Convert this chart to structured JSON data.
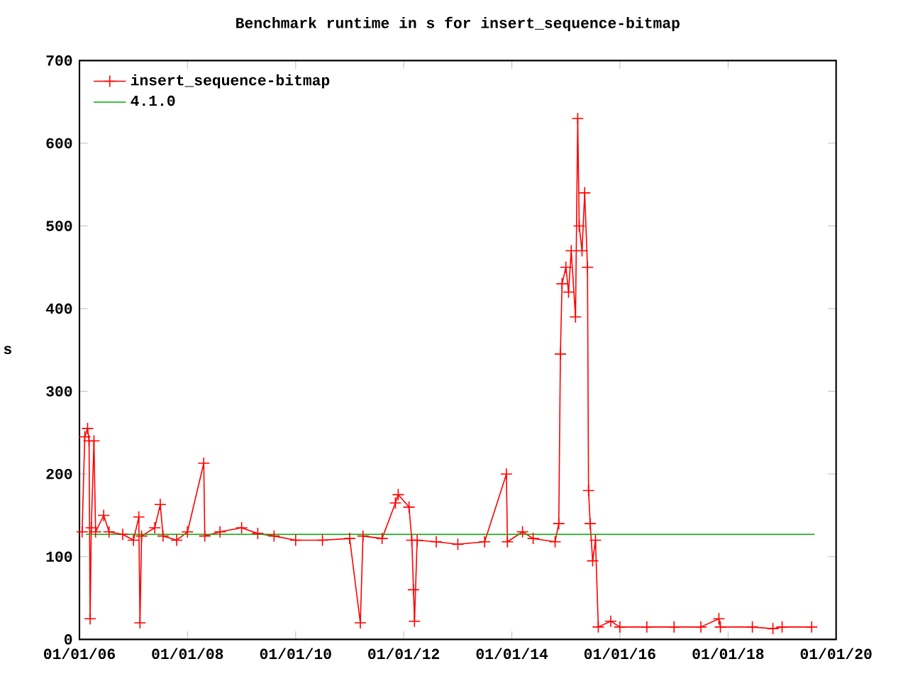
{
  "chart_data": {
    "type": "line",
    "title": "Benchmark runtime in s for insert_sequence-bitmap",
    "ylabel": "s",
    "series": [
      {
        "name": "insert_sequence-bitmap",
        "color": "#ff0000",
        "marker": "cross",
        "x": [
          "2006-01-19",
          "2006-02-06",
          "2006-02-25",
          "2006-03-07",
          "2006-03-14",
          "2006-03-22",
          "2006-04-09",
          "2006-04-20",
          "2006-06-14",
          "2006-07-20",
          "2006-10-20",
          "2007-01-01",
          "2007-02-06",
          "2007-02-14",
          "2007-02-25",
          "2007-05-25",
          "2007-07-01",
          "2007-07-20",
          "2007-10-20",
          "2008-01-01",
          "2008-04-20",
          "2008-04-27",
          "2008-08-08",
          "2009-01-01",
          "2009-04-20",
          "2009-08-08",
          "2010-01-01",
          "2010-07-01",
          "2011-01-01",
          "2011-03-14",
          "2011-04-01",
          "2011-08-08",
          "2011-11-06",
          "2011-11-25",
          "2012-02-06",
          "2012-02-25",
          "2012-03-07",
          "2012-03-14",
          "2012-04-01",
          "2012-08-08",
          "2013-01-01",
          "2013-07-01",
          "2013-11-25",
          "2013-12-02",
          "2014-03-14",
          "2014-05-25",
          "2014-10-20",
          "2014-11-14",
          "2014-11-25",
          "2014-12-06",
          "2015-01-01",
          "2015-01-19",
          "2015-02-06",
          "2015-03-07",
          "2015-03-22",
          "2015-04-01",
          "2015-04-20",
          "2015-05-08",
          "2015-05-27",
          "2015-06-03",
          "2015-06-14",
          "2015-07-01",
          "2015-07-20",
          "2015-08-08",
          "2015-10-31",
          "2016-01-01",
          "2016-07-01",
          "2017-01-01",
          "2017-07-01",
          "2017-10-31",
          "2017-11-10",
          "2018-06-14",
          "2018-10-31",
          "2019-01-01",
          "2019-07-20"
        ],
        "values": [
          130,
          245,
          255,
          240,
          25,
          135,
          240,
          130,
          150,
          130,
          127,
          120,
          148,
          20,
          125,
          135,
          163,
          125,
          120,
          130,
          213,
          125,
          130,
          135,
          128,
          125,
          120,
          120,
          122,
          20,
          125,
          122,
          165,
          175,
          160,
          120,
          60,
          22,
          120,
          118,
          115,
          118,
          200,
          118,
          130,
          122,
          118,
          140,
          345,
          430,
          450,
          420,
          470,
          390,
          630,
          500,
          470,
          540,
          450,
          180,
          140,
          95,
          120,
          15,
          22,
          15,
          15,
          15,
          15,
          25,
          15,
          15,
          13,
          15,
          15
        ]
      },
      {
        "name": "4.1.0",
        "color": "#00b000",
        "marker": "none",
        "x": [
          "2006-02-15",
          "2019-08-08"
        ],
        "values": [
          127,
          127
        ]
      }
    ],
    "xlim": [
      "2006-01-01",
      "2020-01-01"
    ],
    "xticks": [
      {
        "value": "2006-01-01",
        "label": "01/01/06"
      },
      {
        "value": "2008-01-01",
        "label": "01/01/08"
      },
      {
        "value": "2010-01-01",
        "label": "01/01/10"
      },
      {
        "value": "2012-01-01",
        "label": "01/01/12"
      },
      {
        "value": "2014-01-01",
        "label": "01/01/14"
      },
      {
        "value": "2016-01-01",
        "label": "01/01/16"
      },
      {
        "value": "2018-01-01",
        "label": "01/01/18"
      },
      {
        "value": "2020-01-01",
        "label": "01/01/20"
      }
    ],
    "ylim": [
      0,
      700
    ],
    "yticks": [
      0,
      100,
      200,
      300,
      400,
      500,
      600,
      700
    ],
    "legend": "top left",
    "grid": false,
    "line_style": "solid"
  }
}
